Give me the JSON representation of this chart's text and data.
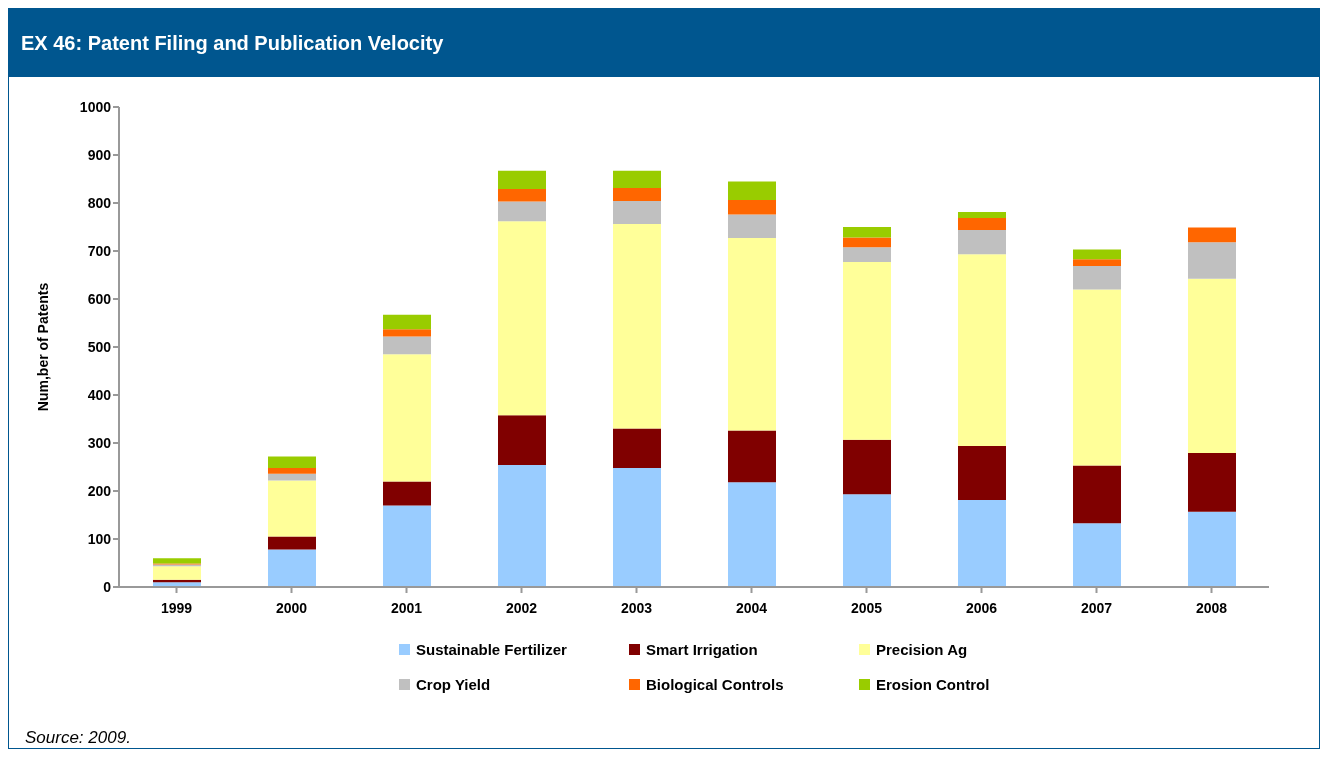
{
  "chart_data": {
    "type": "bar",
    "title": "EX 46: Patent Filing and Publication Velocity",
    "ylabel": "Num,ber of Patents",
    "stacked": true,
    "legend": "bottom",
    "categories": [
      "1999",
      "2000",
      "2001",
      "2002",
      "2003",
      "2004",
      "2005",
      "2006",
      "2007",
      "2008"
    ],
    "ylim": [
      0,
      1000
    ],
    "yticks": [
      0,
      100,
      200,
      300,
      400,
      500,
      600,
      700,
      800,
      900,
      1000
    ],
    "series": [
      {
        "name": "Sustainable Fertilizer",
        "color": "#99ccff",
        "values": [
          10,
          78,
          170,
          254,
          248,
          218,
          193,
          181,
          133,
          157
        ]
      },
      {
        "name": "Smart Irrigation",
        "color": "#800000",
        "values": [
          5,
          27,
          50,
          104,
          82,
          108,
          114,
          113,
          120,
          122
        ]
      },
      {
        "name": "Precision Ag",
        "color": "#ffff99",
        "values": [
          28,
          117,
          265,
          404,
          426,
          401,
          370,
          399,
          367,
          363
        ]
      },
      {
        "name": "Crop Yield",
        "color": "#c0c0c0",
        "values": [
          4,
          14,
          37,
          41,
          48,
          49,
          31,
          51,
          49,
          76
        ]
      },
      {
        "name": "Biological Controls",
        "color": "#ff6600",
        "values": [
          2,
          12,
          15,
          26,
          27,
          30,
          20,
          25,
          14,
          31
        ]
      },
      {
        "name": "Erosion Control",
        "color": "#99cc00",
        "values": [
          11,
          24,
          30,
          38,
          36,
          39,
          22,
          12,
          20,
          0
        ]
      }
    ],
    "annotations": [
      "Source: 2009."
    ]
  }
}
